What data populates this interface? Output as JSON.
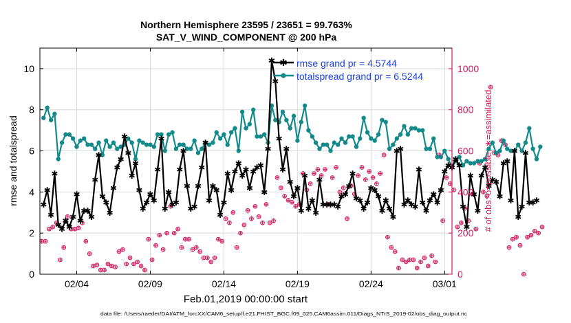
{
  "chart_data": {
    "type": "line",
    "title_line1": "Northern Hemisphere 23595 / 23651 = 99.763%",
    "title_line2": "SAT_V_WIND_COMPONENT @ 200 hPa",
    "xlabel": "Feb.01,2019 00:00:00 start",
    "ylabel_left": "rmse and totalspread",
    "ylabel_right": "# of obs: o=possible; ∗=assimilated",
    "footnote": "data file: /Users/raeder/DAI/ATM_forcXX/CAM6_setup/f.e21.FHIST_BGC.f09_025.CAM6assim.011/Diags_NTrS_2019-02/obs_diag_output.nc",
    "xlim": [
      0,
      28
    ],
    "ylim_left": [
      0,
      11
    ],
    "ylim_right": [
      0,
      1100
    ],
    "x_ticks": [
      2.5,
      7.5,
      12.5,
      17.5,
      22.5,
      27.5
    ],
    "x_tick_labels": [
      "02/04",
      "02/09",
      "02/14",
      "02/19",
      "02/24",
      "03/01"
    ],
    "y_left_ticks": [
      0,
      2,
      4,
      6,
      8,
      10
    ],
    "y_left_tick_labels": [
      "0",
      "2",
      "4",
      "6",
      "8",
      "10"
    ],
    "y_right_ticks": [
      0,
      200,
      400,
      600,
      800,
      1000
    ],
    "y_right_tick_labels": [
      "0",
      "200",
      "400",
      "600",
      "800",
      "1000"
    ],
    "grid": true,
    "legend_position": "top-right",
    "colors": {
      "rmse": "#000000",
      "spread": "#138a8a",
      "obs": "#d1195d",
      "right_axis": "#d1195d",
      "legend_text": "#1a3fe0",
      "grid": "#d9d9d9"
    },
    "series": [
      {
        "name": "rmse grand pr = 4.5744",
        "axis": "left",
        "x_start": 0.25,
        "x_step": 0.25,
        "values": [
          3.4,
          4.1,
          2.9,
          4.9,
          2.4,
          2.2,
          2.6,
          2.3,
          2.8,
          3.9,
          2.6,
          3.1,
          3.1,
          2.8,
          4.6,
          5.8,
          3.8,
          3.5,
          3.0,
          4.2,
          5.2,
          5.6,
          6.7,
          5.9,
          4.8,
          5.4,
          4.1,
          3.2,
          3.5,
          3.9,
          3.6,
          5.1,
          6.6,
          3.2,
          4.0,
          3.4,
          3.5,
          5.1,
          6.0,
          4.3,
          3.2,
          3.3,
          4.3,
          5.2,
          6.4,
          3.6,
          4.3,
          4.1,
          2.9,
          3.5,
          4.9,
          4.1,
          5.0,
          5.4,
          4.8,
          5.1,
          4.2,
          5.0,
          5.2,
          5.3,
          4.0,
          6.1,
          10.4,
          9.4,
          6.6,
          5.1,
          6.1,
          4.5,
          3.8,
          4.2,
          3.1,
          4.8,
          3.2,
          3.6,
          3.0,
          4.6,
          3.4,
          3.4,
          3.4,
          3.4,
          3.3,
          3.8,
          3.9,
          4.3,
          4.9,
          3.7,
          3.6,
          3.2,
          3.5,
          4.2,
          4.1,
          3.8,
          3.1,
          3.6,
          3.2,
          2.8,
          6.0,
          6.1,
          3.4,
          3.6,
          3.4,
          3.3,
          5.1,
          3.5,
          3.1,
          3.6,
          3.9,
          3.5,
          4.1,
          5.0,
          5.3,
          5.2,
          5.6,
          5.3,
          3.3,
          2.3,
          4.8,
          3.9,
          3.1,
          4.8,
          5.2,
          4.3,
          4.6,
          4.5,
          3.8,
          5.4,
          5.5,
          3.6,
          6.0,
          2.8,
          3.3,
          5.9,
          3.5,
          3.5,
          3.6
        ]
      },
      {
        "name": "totalspread grand pr = 6.5244",
        "axis": "left",
        "x_start": 0.25,
        "x_step": 0.25,
        "values": [
          7.6,
          8.1,
          7.5,
          7.8,
          5.6,
          6.4,
          6.8,
          6.8,
          6.6,
          6.2,
          6.5,
          6.6,
          6.3,
          6.3,
          6.1,
          6.4,
          5.8,
          6.5,
          6.2,
          6.4,
          6.1,
          6.2,
          6.3,
          6.6,
          6.4,
          5.6,
          6.5,
          6.4,
          6.3,
          6.3,
          6.2,
          6.8,
          6.8,
          6.0,
          6.8,
          6.9,
          6.1,
          6.3,
          6.3,
          6.1,
          6.1,
          6.5,
          5.9,
          6.1,
          6.4,
          6.3,
          6.4,
          6.9,
          6.6,
          6.8,
          6.3,
          6.9,
          7.1,
          6.0,
          7.9,
          7.1,
          7.3,
          8.0,
          6.7,
          6.7,
          6.8,
          6.4,
          8.2,
          7.5,
          7.4,
          7.9,
          7.5,
          7.1,
          7.7,
          6.5,
          7.4,
          8.2,
          7.0,
          6.7,
          6.4,
          6.1,
          6.3,
          6.3,
          6.0,
          6.4,
          6.3,
          6.6,
          6.4,
          6.7,
          6.7,
          6.2,
          6.6,
          7.6,
          6.9,
          6.6,
          6.5,
          6.8,
          7.5,
          7.4,
          6.1,
          6.3,
          6.6,
          6.8,
          7.2,
          6.8,
          7.1,
          7.1,
          7.0,
          7.0,
          6.1,
          6.1,
          6.6,
          5.7,
          5.7,
          6.0,
          5.6,
          5.2,
          5.5,
          5.7,
          5.3,
          5.5,
          5.4,
          5.4,
          5.5,
          5.5,
          5.6,
          6.1,
          6.4,
          5.9,
          6.0,
          6.5,
          6.1,
          6.0,
          6.0,
          6.3,
          6.0,
          6.4,
          7.1,
          6.1,
          5.6,
          6.2
        ]
      },
      {
        "name": "# of obs assimilated",
        "axis": "right",
        "x_start": 0.125,
        "x_step": 0.25,
        "values": [
          160,
          160,
          220,
          230,
          250,
          70,
          130,
          280,
          220,
          220,
          225,
          250,
          160,
          100,
          40,
          45,
          20,
          20,
          50,
          40,
          35,
          110,
          120,
          50,
          80,
          50,
          60,
          40,
          20,
          170,
          70,
          140,
          190,
          120,
          200,
          330,
          200,
          220,
          130,
          170,
          170,
          120,
          130,
          110,
          80,
          80,
          60,
          80,
          170,
          160,
          270,
          250,
          300,
          130,
          200,
          240,
          310,
          270,
          330,
          280,
          250,
          340,
          250,
          260,
          470,
          420,
          380,
          360,
          350,
          330,
          340,
          490,
          410,
          440,
          490,
          510,
          480,
          510,
          340,
          470,
          520,
          400,
          420,
          270,
          430,
          390,
          480,
          520,
          460,
          500,
          470,
          440,
          490,
          580,
          180,
          130,
          110,
          30,
          70,
          60,
          70,
          70,
          30,
          60,
          80,
          40,
          90,
          60,
          580,
          260,
          470,
          440,
          410,
          230,
          250,
          320,
          260,
          390,
          220,
          540,
          400,
          380,
          910,
          590,
          580,
          650,
          630,
          130,
          170,
          180,
          140,
          0,
          180,
          190,
          210,
          200,
          230
        ]
      }
    ]
  }
}
